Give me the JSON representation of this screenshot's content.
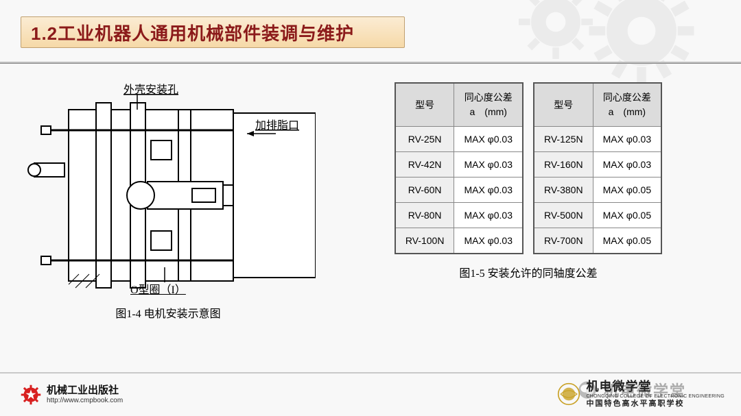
{
  "title": "1.2工业机器人通用机械部件装调与维护",
  "diagram": {
    "label_top": "外壳安装孔",
    "label_right": "加排脂口",
    "label_bottom": "O型圈（I）",
    "caption": "图1-4 电机安装示意图",
    "stroke": "#000000",
    "fill": "#ffffff"
  },
  "tables": {
    "caption": "图1-5 安装允许的同轴度公差",
    "header_bg": "#dcdcdc",
    "model_bg": "#efefef",
    "border": "#555555",
    "font_size": 14,
    "col_model": "型号",
    "col_tol_line1": "同心度公差",
    "col_tol_line2": "a　(mm)",
    "left": [
      {
        "model": "RV-25N",
        "tol": "MAX φ0.03"
      },
      {
        "model": "RV-42N",
        "tol": "MAX φ0.03"
      },
      {
        "model": "RV-60N",
        "tol": "MAX φ0.03"
      },
      {
        "model": "RV-80N",
        "tol": "MAX φ0.03"
      },
      {
        "model": "RV-100N",
        "tol": "MAX φ0.03"
      }
    ],
    "right": [
      {
        "model": "RV-125N",
        "tol": "MAX φ0.03"
      },
      {
        "model": "RV-160N",
        "tol": "MAX φ0.03"
      },
      {
        "model": "RV-380N",
        "tol": "MAX φ0.05"
      },
      {
        "model": "RV-500N",
        "tol": "MAX φ0.05"
      },
      {
        "model": "RV-700N",
        "tol": "MAX φ0.05"
      }
    ]
  },
  "publisher": {
    "name": "机械工业出版社",
    "url": "http://www.cmpbook.com",
    "logo_color": "#d82020"
  },
  "college": {
    "name": "机电微学堂",
    "en": "CHONGQING COLLEGE OF ELECTRONIC ENGINEERING",
    "sub": "中国特色高水平高职学校",
    "logo_color": "#c9a227"
  },
  "watermark": "机电微学堂",
  "colors": {
    "title_text": "#8b1a1a",
    "title_bg_top": "#fbecd3",
    "title_bg_bot": "#f6d9a8",
    "rule": "#bfbfbf",
    "page_bg": "#f8f8f8"
  }
}
